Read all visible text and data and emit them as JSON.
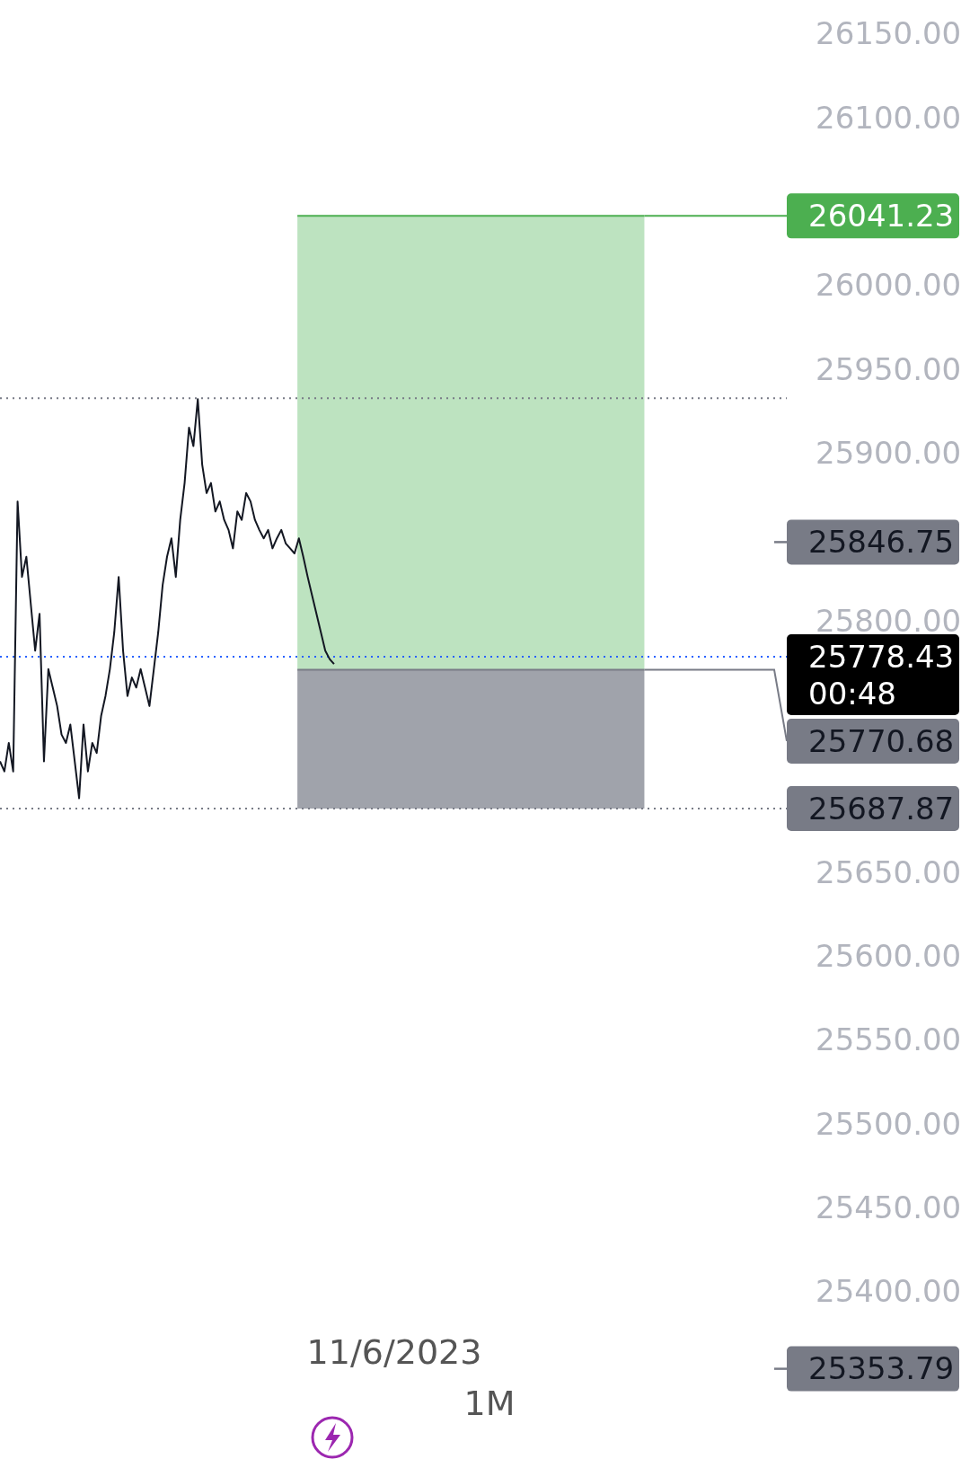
{
  "chart_data": {
    "type": "line",
    "subtitle": "1M",
    "categories": [
      null,
      null,
      null,
      null,
      null,
      null,
      null,
      null,
      null,
      null,
      null,
      null,
      null,
      null,
      null,
      null,
      null,
      null,
      null,
      null,
      null,
      null,
      null,
      null,
      null,
      null,
      null,
      null,
      null,
      null,
      null,
      null,
      null,
      null,
      null,
      null,
      null,
      null,
      null,
      null,
      null,
      null,
      null,
      null,
      null,
      null,
      null,
      null,
      null,
      null,
      null,
      null,
      null,
      null,
      null,
      null,
      null,
      null,
      null,
      null,
      null,
      null,
      null,
      null,
      null,
      null,
      null,
      null,
      null,
      null,
      null,
      null,
      null,
      null,
      null,
      null,
      null,
      null,
      null,
      null,
      null,
      null,
      null,
      null,
      null,
      null,
      null,
      null,
      null,
      null,
      null,
      null,
      null,
      null,
      null,
      null,
      null,
      null,
      null,
      null,
      null,
      null,
      null,
      null,
      null,
      null,
      null,
      null,
      null,
      null,
      null,
      null,
      null,
      null,
      null,
      null,
      null,
      null,
      null,
      null,
      null,
      null,
      null,
      null,
      null,
      null,
      null,
      null,
      null,
      null,
      null,
      null,
      null,
      null,
      null,
      null,
      null,
      null,
      null,
      null,
      null,
      null,
      null,
      null,
      null,
      null,
      null,
      null,
      null,
      null,
      null,
      null,
      null,
      null,
      null,
      null,
      null,
      null,
      null,
      null,
      null,
      null,
      null,
      null,
      null,
      null,
      null,
      null,
      null,
      null,
      null,
      null,
      null,
      null,
      null,
      null,
      null,
      null,
      null,
      null
    ],
    "series": [
      {
        "color": "#131722",
        "values": [
          25716,
          25710,
          25727,
          25710,
          25871,
          25826,
          25838,
          25810,
          25782,
          25804,
          25716,
          25771,
          25760,
          25749,
          25732,
          25727,
          25738,
          25716,
          25694,
          25738,
          25710,
          25727,
          25721,
          25743,
          25755,
          25771,
          25793,
          25826,
          25782,
          25755,
          25766,
          25760,
          25771,
          25760,
          25749,
          25771,
          25793,
          25821,
          25838,
          25849,
          25826,
          25860,
          25882,
          25915,
          25904,
          25932,
          25893,
          25876,
          25882,
          25865,
          25871,
          25860,
          25854,
          25843,
          25865,
          25860,
          25876,
          25871,
          25860,
          25854,
          25849,
          25854,
          25843,
          25849,
          25854,
          25846,
          25843,
          25840,
          25849,
          25838,
          25826,
          25815,
          25804,
          25793,
          25782,
          25777,
          25774,
          null,
          null,
          null,
          null,
          null,
          null,
          null,
          null,
          null,
          null,
          null,
          null,
          null,
          null,
          null,
          null,
          null,
          null,
          null,
          null,
          null,
          null,
          null,
          null,
          null,
          null,
          null,
          null,
          null,
          null,
          null,
          null,
          null,
          null,
          null,
          null,
          null,
          null,
          null,
          null,
          null,
          null,
          null,
          null,
          null,
          null,
          null,
          null,
          null,
          null,
          null,
          null,
          null,
          null,
          null,
          null,
          null,
          null,
          null,
          null,
          null,
          null,
          null,
          null,
          null,
          null,
          null,
          null,
          null,
          null,
          null,
          null,
          null,
          null,
          null,
          null,
          null,
          null,
          null,
          null,
          null,
          null,
          null,
          null,
          null,
          null,
          null,
          null,
          null,
          null,
          null,
          null,
          null,
          null,
          null,
          null,
          null,
          null,
          null,
          null,
          null,
          null,
          null
        ]
      }
    ],
    "ylim": [
      25300,
      26170
    ],
    "yticks": [
      {
        "value": 25400,
        "label": "25400.00"
      },
      {
        "value": 25450,
        "label": "25450.00"
      },
      {
        "value": 25500,
        "label": "25500.00"
      },
      {
        "value": 25550,
        "label": "25550.00"
      },
      {
        "value": 25600,
        "label": "25600.00"
      },
      {
        "value": 25650,
        "label": "25650.00"
      },
      {
        "value": 25800,
        "label": "25800.00"
      },
      {
        "value": 25900,
        "label": "25900.00"
      },
      {
        "value": 25950,
        "label": "25950.00"
      },
      {
        "value": 26000,
        "label": "26000.00"
      },
      {
        "value": 26100,
        "label": "26100.00"
      },
      {
        "value": 26150,
        "label": "26150.00"
      }
    ],
    "bands": [
      {
        "axis": "y",
        "from": 25770.68,
        "to": 26041.23,
        "color": "#bde3c0"
      },
      {
        "axis": "y",
        "from": 25687.87,
        "to": 25770.68,
        "color": "#a0a3ab"
      }
    ],
    "ref_lines": [
      {
        "axis": "y",
        "value": 25932.6,
        "label": null,
        "color": "#787b86",
        "line_style": "dotted"
      },
      {
        "axis": "y",
        "value": 26041.23,
        "label": "26041.23",
        "color": "#4caf50"
      },
      {
        "axis": "y",
        "value": 25846.75,
        "label": "25846.75",
        "color": "#787b86"
      },
      {
        "axis": "y",
        "value": 25778.43,
        "label": "25778.43",
        "color": "#2962ff",
        "line_style": "dotted"
      },
      {
        "axis": "y",
        "value": 25770.68,
        "label": "25770.68",
        "color": "#787b86"
      },
      {
        "axis": "y",
        "value": 25687.87,
        "label": "25687.87",
        "color": "#787b86",
        "line_style": "dotted"
      },
      {
        "axis": "y",
        "value": 25353.79,
        "label": "25353.79",
        "color": "#787b86"
      }
    ],
    "annotations": [
      "11/6/2023",
      "00:48"
    ]
  }
}
